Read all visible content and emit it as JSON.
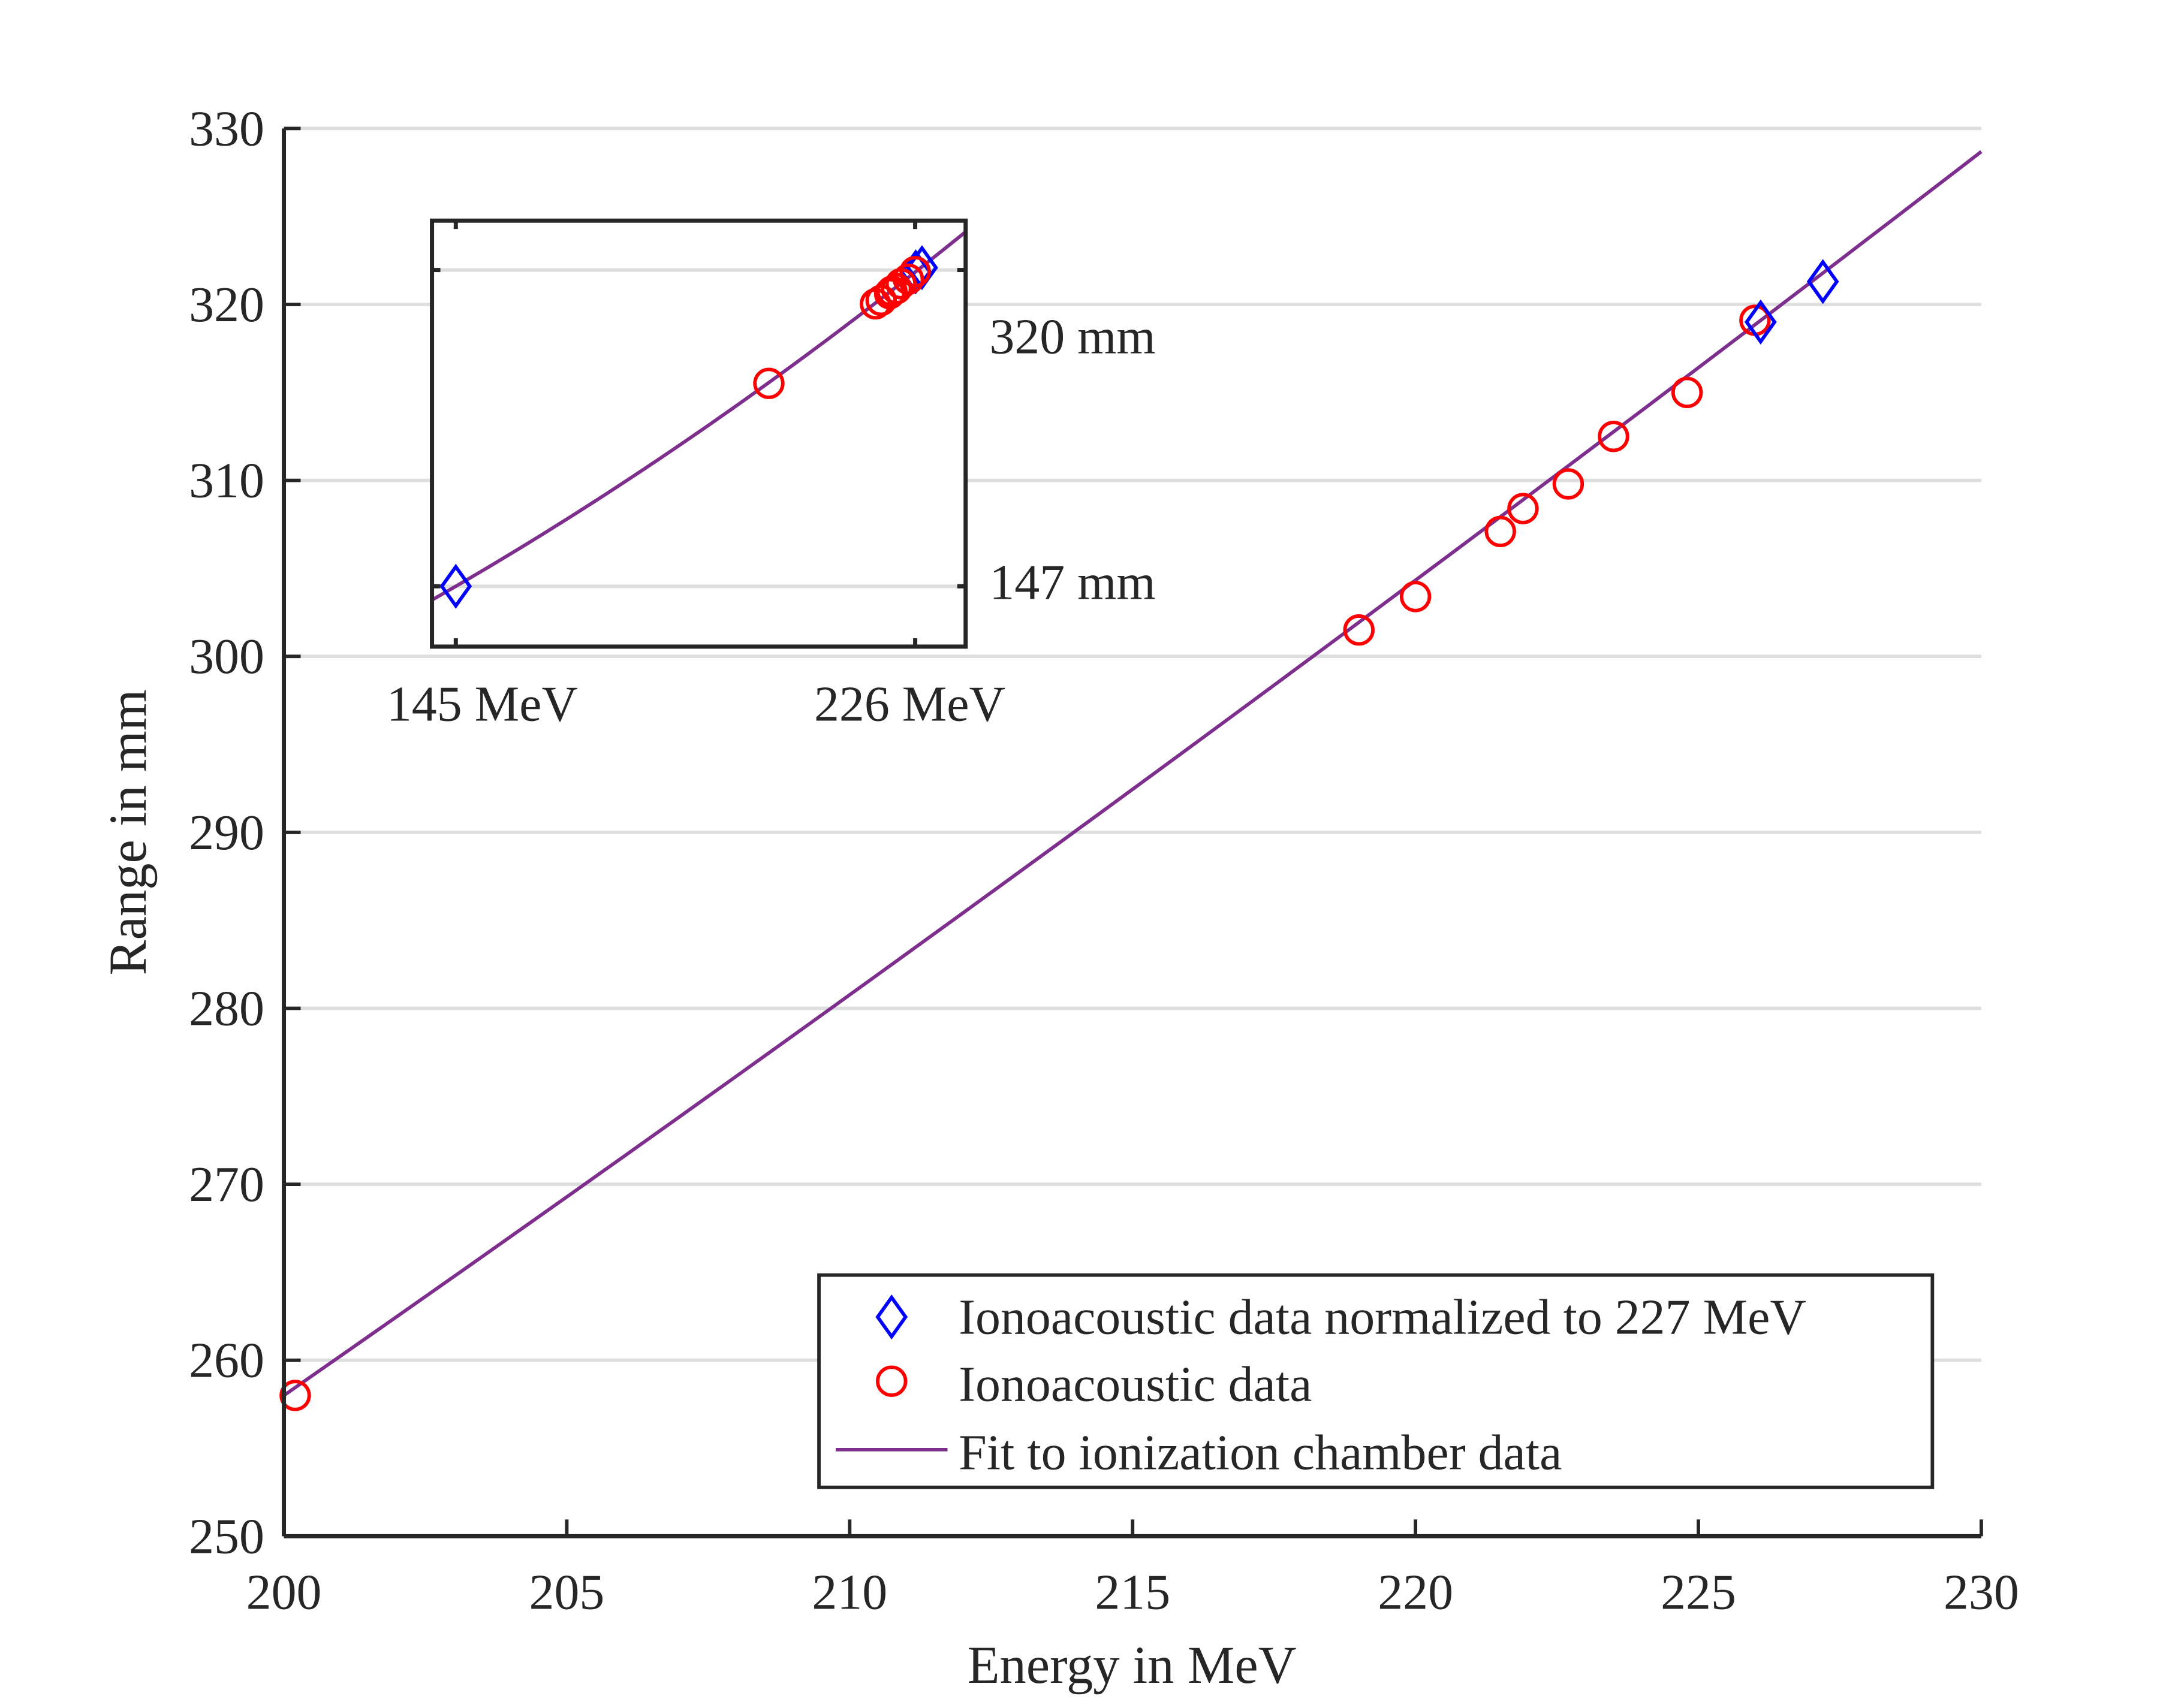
{
  "chart_data": {
    "type": "scatter",
    "xlabel": "Energy in MeV",
    "ylabel": "Range in mm",
    "xlim": [
      200,
      230
    ],
    "ylim": [
      250,
      330
    ],
    "xticks": [
      200,
      205,
      210,
      215,
      220,
      225,
      230
    ],
    "yticks": [
      250,
      260,
      270,
      280,
      290,
      300,
      310,
      320,
      330
    ],
    "grid": "horizontal",
    "legend_position": "bottom-right",
    "series": [
      {
        "name": "Ionoacoustic data normalized to 227 MeV",
        "marker": "diamond",
        "color": "#0000ff",
        "x": [
          226.1,
          227.2
        ],
        "y": [
          319.0,
          321.3
        ]
      },
      {
        "name": "Ionoacoustic data",
        "marker": "circle",
        "color": "#ff0000",
        "x": [
          200.2,
          219.0,
          220.0,
          221.5,
          221.9,
          222.7,
          223.5,
          224.8,
          226.0
        ],
        "y": [
          258.0,
          301.5,
          303.4,
          307.1,
          308.4,
          309.8,
          312.5,
          315.0,
          319.1
        ]
      },
      {
        "name": "Fit to ionization chamber data",
        "type": "line",
        "color": "#7e2f8e",
        "quadratic_coefficients": [
          -30.34,
          0.6465,
          0.003976
        ]
      }
    ],
    "inset": {
      "xtick_labels": [
        "145 MeV",
        "226 MeV"
      ],
      "xticks": [
        145,
        226
      ],
      "ytick_labels": [
        "147 mm",
        "320 mm"
      ],
      "yticks": [
        147,
        320
      ],
      "xlim": [
        140.8,
        234.9
      ],
      "ylim": [
        114,
        347
      ],
      "diamond_points": {
        "x": [
          145,
          226.1,
          227.2
        ],
        "y": [
          147,
          319.0,
          321.3
        ]
      },
      "circle_points": {
        "x": [
          200.2,
          219.0,
          220.0,
          221.5,
          221.9,
          222.7,
          223.5,
          224.8,
          226.0
        ],
        "y": [
          258.0,
          301.5,
          303.4,
          307.1,
          308.4,
          309.8,
          312.5,
          315.0,
          319.1
        ]
      }
    }
  }
}
